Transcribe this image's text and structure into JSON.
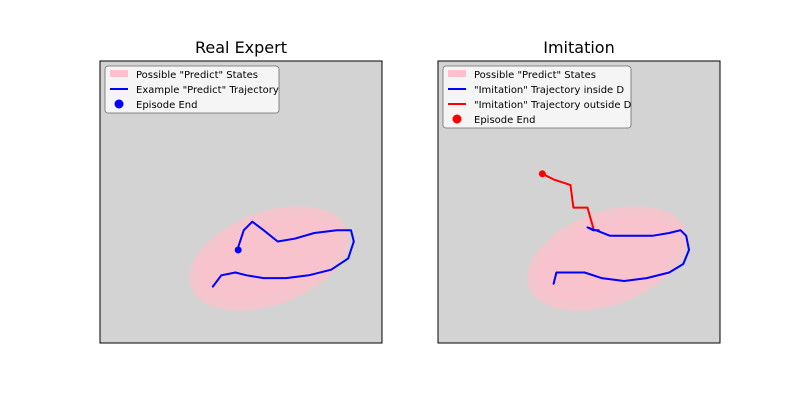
{
  "chart_data": [
    {
      "type": "line",
      "title": "Real Expert",
      "xlabel": "",
      "ylabel": "",
      "xlim": [
        0,
        10
      ],
      "ylim": [
        0,
        10
      ],
      "axis_ticks": false,
      "grid": false,
      "background_color": "#d3d3d3",
      "legend_position": "top-left",
      "region": {
        "label": "Possible \"Predict\" States",
        "shape": "ellipse",
        "center": [
          6.0,
          3.0
        ],
        "rx": 5.9,
        "ry": 3.3,
        "rotation_deg": -20,
        "color": "#ffc0cb"
      },
      "series": [
        {
          "name": "Example \"Predict\" Trajectory",
          "color": "#0000ff",
          "points": [
            [
              4.0,
              2.0
            ],
            [
              4.3,
              2.4
            ],
            [
              4.8,
              2.5
            ],
            [
              5.2,
              2.4
            ],
            [
              5.8,
              2.3
            ],
            [
              6.6,
              2.3
            ],
            [
              7.4,
              2.4
            ],
            [
              8.2,
              2.6
            ],
            [
              8.8,
              3.0
            ],
            [
              9.0,
              3.6
            ],
            [
              8.9,
              4.0
            ],
            [
              8.4,
              4.0
            ],
            [
              7.6,
              3.9
            ],
            [
              6.9,
              3.7
            ],
            [
              6.3,
              3.6
            ],
            [
              5.8,
              4.0
            ],
            [
              5.4,
              4.3
            ],
            [
              5.1,
              4.0
            ],
            [
              4.9,
              3.4
            ],
            [
              4.9,
              3.3
            ]
          ]
        }
      ],
      "end_marker": {
        "name": "Episode End",
        "color": "#0000ff",
        "point": [
          4.9,
          3.3
        ]
      }
    },
    {
      "type": "line",
      "title": "Imitation",
      "xlabel": "",
      "ylabel": "",
      "xlim": [
        0,
        10
      ],
      "ylim": [
        0,
        10
      ],
      "axis_ticks": false,
      "grid": false,
      "background_color": "#d3d3d3",
      "legend_position": "top-left",
      "region": {
        "label": "Possible \"Predict\" States",
        "shape": "ellipse",
        "center": [
          6.0,
          3.0
        ],
        "rx": 5.9,
        "ry": 3.3,
        "rotation_deg": -20,
        "color": "#ffc0cb"
      },
      "series": [
        {
          "name": "\"Imitation\" Trajectory inside D",
          "color": "#0000ff",
          "points": [
            [
              4.1,
              2.1
            ],
            [
              4.2,
              2.5
            ],
            [
              4.6,
              2.5
            ],
            [
              5.2,
              2.5
            ],
            [
              5.8,
              2.3
            ],
            [
              6.6,
              2.2
            ],
            [
              7.4,
              2.3
            ],
            [
              8.2,
              2.5
            ],
            [
              8.7,
              2.8
            ],
            [
              8.9,
              3.3
            ],
            [
              8.8,
              3.8
            ],
            [
              8.6,
              4.0
            ],
            [
              8.2,
              3.9
            ],
            [
              7.6,
              3.8
            ],
            [
              6.8,
              3.8
            ],
            [
              6.1,
              3.8
            ],
            [
              5.6,
              4.0
            ],
            [
              5.3,
              4.1
            ],
            [
              5.5,
              4.0
            ],
            [
              5.7,
              4.0
            ]
          ]
        },
        {
          "name": "\"Imitation\" Trajectory outside D",
          "color": "#ff0000",
          "points": [
            [
              5.5,
              4.1
            ],
            [
              5.3,
              4.8
            ],
            [
              4.8,
              4.8
            ],
            [
              4.7,
              5.6
            ],
            [
              4.1,
              5.8
            ],
            [
              3.7,
              6.0
            ]
          ]
        }
      ],
      "end_marker": {
        "name": "Episode End",
        "color": "#ff0000",
        "point": [
          3.7,
          6.0
        ]
      }
    }
  ]
}
